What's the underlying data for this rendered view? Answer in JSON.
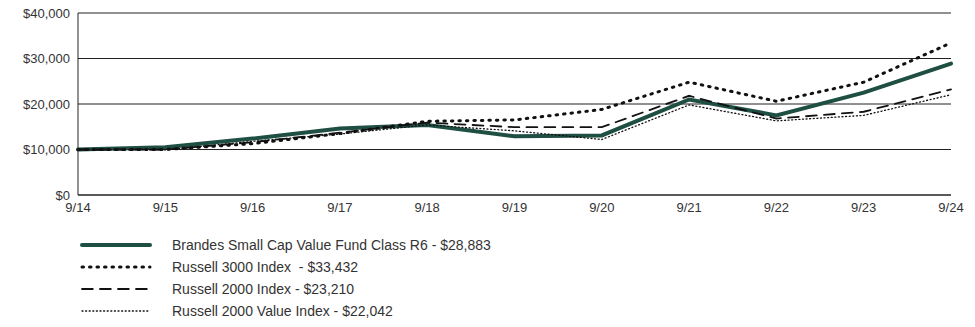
{
  "chart_data": {
    "type": "line",
    "categories": [
      "9/14",
      "9/15",
      "9/16",
      "9/17",
      "9/18",
      "9/19",
      "9/20",
      "9/21",
      "9/22",
      "9/23",
      "9/24"
    ],
    "series": [
      {
        "name": "Brandes Small Cap Value Fund Class R6 - $28,883",
        "color": "#1f4e43",
        "line_style": "solid",
        "values": [
          10000,
          10500,
          12400,
          14600,
          15400,
          12900,
          13100,
          21000,
          17500,
          22500,
          28883
        ]
      },
      {
        "name": "Russell 3000 Index  - $33,432",
        "color": "#111111",
        "line_style": "dotted",
        "values": [
          10000,
          10000,
          11300,
          13500,
          16200,
          16500,
          18800,
          24800,
          20600,
          24800,
          33432
        ]
      },
      {
        "name": "Russell 2000 Index - $23,210",
        "color": "#111111",
        "line_style": "dashed",
        "values": [
          10000,
          10000,
          11600,
          13700,
          15900,
          14900,
          14900,
          21800,
          16800,
          18300,
          23210
        ]
      },
      {
        "name": "Russell 2000 Value Index - $22,042",
        "color": "#111111",
        "line_style": "dotted",
        "values": [
          10000,
          9900,
          11800,
          13400,
          15400,
          14100,
          12200,
          19800,
          16300,
          17500,
          22042
        ]
      }
    ],
    "ylim": [
      0,
      40000
    ],
    "yticks": [
      {
        "value": 0,
        "label": "$0"
      },
      {
        "value": 10000,
        "label": "$10,000"
      },
      {
        "value": 20000,
        "label": "$20,000"
      },
      {
        "value": 30000,
        "label": "$30,000"
      },
      {
        "value": 40000,
        "label": "$40,000"
      }
    ],
    "grid": true
  }
}
